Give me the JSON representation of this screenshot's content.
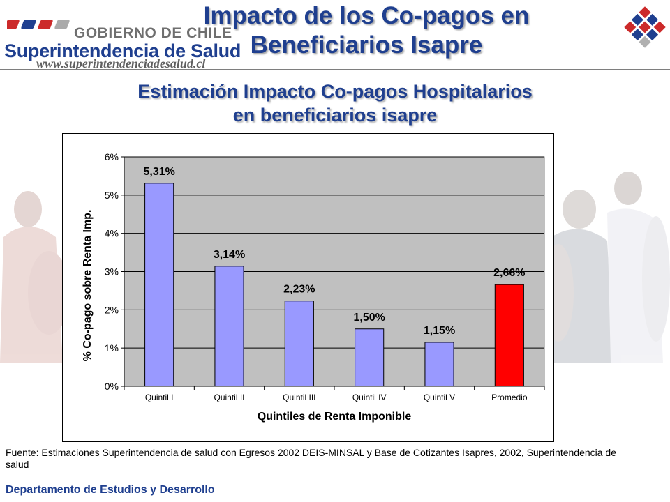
{
  "header": {
    "title_line1": "Impacto de los Co-pagos en",
    "title_line2": "Beneficiarios Isapre",
    "logo": {
      "line1": "GOBIERNO DE CHILE",
      "line2": "Superintendencia de Salud",
      "line3": "www.superintendenciadesalud.cl"
    }
  },
  "subtitle": {
    "line1": "Estimación Impacto Co-pagos Hospitalarios",
    "line2": "en beneficiarios isapre"
  },
  "chart_data": {
    "type": "bar",
    "categories": [
      "Quintil I",
      "Quintil II",
      "Quintil III",
      "Quintil IV",
      "Quintil V",
      "Promedio"
    ],
    "values": [
      5.31,
      3.14,
      2.23,
      1.5,
      1.15,
      2.66
    ],
    "data_labels": [
      "5,31%",
      "3,14%",
      "2,23%",
      "1,50%",
      "1,15%",
      "2,66%"
    ],
    "bar_colors": [
      "#9999ff",
      "#9999ff",
      "#9999ff",
      "#9999ff",
      "#9999ff",
      "#ff0000"
    ],
    "xlabel": "Quintiles de Renta Imponible",
    "ylabel": "% Co-pago sobre Renta Imp.",
    "ylim": [
      0,
      6
    ],
    "yticks": [
      0,
      1,
      2,
      3,
      4,
      5,
      6
    ],
    "ytick_labels": [
      "0%",
      "1%",
      "2%",
      "3%",
      "4%",
      "5%",
      "6%"
    ],
    "plot_background": "#c0c0c0",
    "grid": true
  },
  "footer": {
    "source": "Fuente: Estimaciones Superintendencia de salud con Egresos 2002 DEIS-MINSAL y Base de Cotizantes Isapres, 2002, Superintendencia de salud",
    "department": "Departamento de Estudios y Desarrollo"
  },
  "colors": {
    "brand_blue": "#1f3f8f",
    "bar_blue": "#9999ff",
    "bar_red": "#ff0000"
  }
}
